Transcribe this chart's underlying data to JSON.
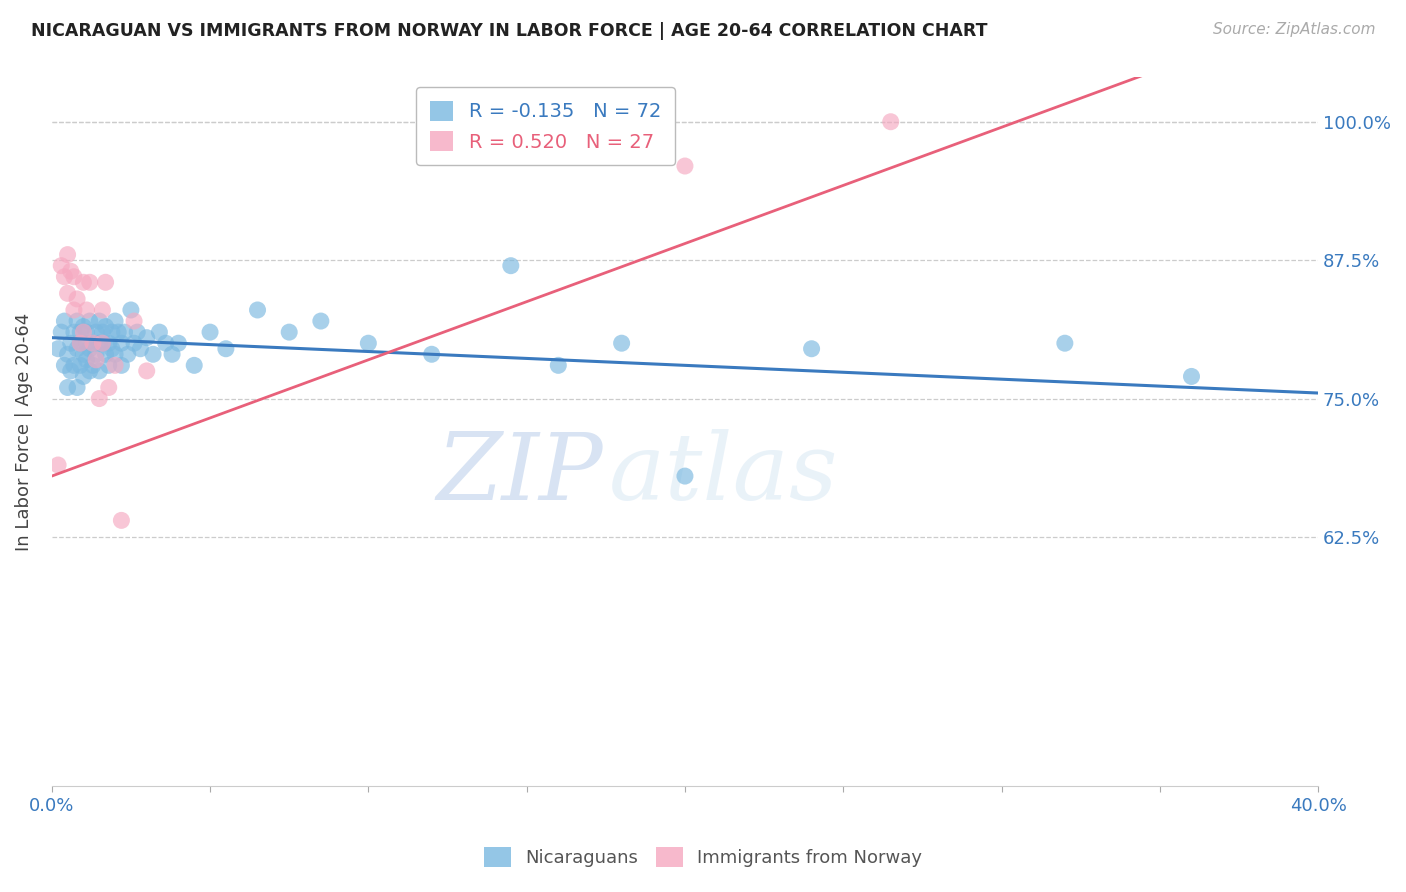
{
  "title": "NICARAGUAN VS IMMIGRANTS FROM NORWAY IN LABOR FORCE | AGE 20-64 CORRELATION CHART",
  "source": "Source: ZipAtlas.com",
  "ylabel": "In Labor Force | Age 20-64",
  "xlim": [
    0.0,
    0.4
  ],
  "ylim": [
    0.4,
    1.04
  ],
  "xticks": [
    0.0,
    0.05,
    0.1,
    0.15,
    0.2,
    0.25,
    0.3,
    0.35,
    0.4
  ],
  "xtick_labels": [
    "0.0%",
    "",
    "",
    "",
    "",
    "",
    "",
    "",
    "40.0%"
  ],
  "ytick_positions": [
    0.625,
    0.75,
    0.875,
    1.0
  ],
  "ytick_labels": [
    "62.5%",
    "75.0%",
    "87.5%",
    "100.0%"
  ],
  "blue_color": "#7ab8e0",
  "pink_color": "#f5a8c0",
  "blue_line_color": "#3a7abf",
  "pink_line_color": "#e8607a",
  "R_blue": -0.135,
  "N_blue": 72,
  "R_pink": 0.52,
  "N_pink": 27,
  "legend_label_blue": "Nicaraguans",
  "legend_label_pink": "Immigrants from Norway",
  "watermark_zip": "ZIP",
  "watermark_atlas": "atlas",
  "blue_scatter_x": [
    0.002,
    0.003,
    0.004,
    0.004,
    0.005,
    0.005,
    0.006,
    0.006,
    0.007,
    0.007,
    0.008,
    0.008,
    0.008,
    0.009,
    0.009,
    0.009,
    0.01,
    0.01,
    0.01,
    0.011,
    0.011,
    0.011,
    0.012,
    0.012,
    0.012,
    0.013,
    0.013,
    0.014,
    0.014,
    0.015,
    0.015,
    0.015,
    0.016,
    0.016,
    0.017,
    0.017,
    0.018,
    0.018,
    0.019,
    0.019,
    0.02,
    0.02,
    0.021,
    0.022,
    0.022,
    0.023,
    0.024,
    0.025,
    0.026,
    0.027,
    0.028,
    0.03,
    0.032,
    0.034,
    0.036,
    0.038,
    0.04,
    0.045,
    0.05,
    0.055,
    0.065,
    0.075,
    0.085,
    0.1,
    0.12,
    0.145,
    0.16,
    0.18,
    0.2,
    0.24,
    0.32,
    0.36
  ],
  "blue_scatter_y": [
    0.795,
    0.81,
    0.78,
    0.82,
    0.79,
    0.76,
    0.8,
    0.775,
    0.81,
    0.78,
    0.795,
    0.82,
    0.76,
    0.8,
    0.78,
    0.81,
    0.79,
    0.815,
    0.77,
    0.8,
    0.785,
    0.81,
    0.795,
    0.775,
    0.82,
    0.8,
    0.78,
    0.81,
    0.79,
    0.8,
    0.82,
    0.775,
    0.8,
    0.81,
    0.79,
    0.815,
    0.8,
    0.78,
    0.81,
    0.795,
    0.82,
    0.79,
    0.81,
    0.8,
    0.78,
    0.81,
    0.79,
    0.83,
    0.8,
    0.81,
    0.795,
    0.805,
    0.79,
    0.81,
    0.8,
    0.79,
    0.8,
    0.78,
    0.81,
    0.795,
    0.83,
    0.81,
    0.82,
    0.8,
    0.79,
    0.87,
    0.78,
    0.8,
    0.68,
    0.795,
    0.8,
    0.77
  ],
  "pink_scatter_x": [
    0.002,
    0.003,
    0.004,
    0.005,
    0.005,
    0.006,
    0.007,
    0.007,
    0.008,
    0.009,
    0.01,
    0.01,
    0.011,
    0.012,
    0.013,
    0.014,
    0.015,
    0.016,
    0.016,
    0.017,
    0.018,
    0.02,
    0.022,
    0.026,
    0.03,
    0.2,
    0.265
  ],
  "pink_scatter_y": [
    0.69,
    0.87,
    0.86,
    0.88,
    0.845,
    0.865,
    0.86,
    0.83,
    0.84,
    0.8,
    0.855,
    0.81,
    0.83,
    0.855,
    0.8,
    0.785,
    0.75,
    0.8,
    0.83,
    0.855,
    0.76,
    0.78,
    0.64,
    0.82,
    0.775,
    0.96,
    1.0
  ]
}
